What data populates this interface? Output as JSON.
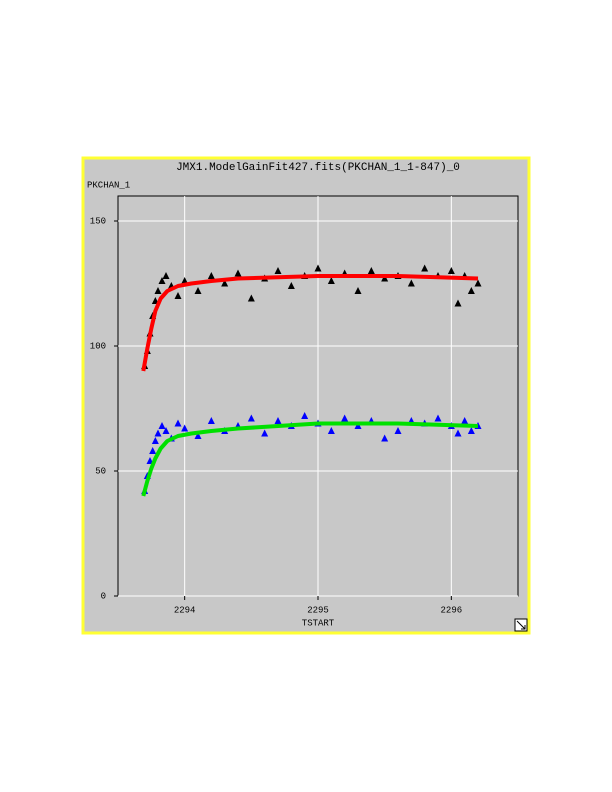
{
  "chart_data": {
    "type": "scatter",
    "title": "JMX1.ModelGainFit427.fits(PKCHAN_1_1-847)_0",
    "ylabel": "PKCHAN_1",
    "xlabel": "TSTART",
    "xlim": [
      2293.5,
      2296.5
    ],
    "xticks": [
      2294,
      2295,
      2296
    ],
    "ylim": [
      0,
      160
    ],
    "yticks": [
      0,
      50,
      100,
      150
    ],
    "grid": true,
    "series": [
      {
        "color": "#000000",
        "marker": "triangle",
        "x": [
          2293.7,
          2293.72,
          2293.74,
          2293.76,
          2293.78,
          2293.8,
          2293.83,
          2293.86,
          2293.9,
          2293.95,
          2294.0,
          2294.1,
          2294.2,
          2294.3,
          2294.4,
          2294.5,
          2294.6,
          2294.7,
          2294.8,
          2294.9,
          2295.0,
          2295.1,
          2295.2,
          2295.3,
          2295.4,
          2295.5,
          2295.6,
          2295.7,
          2295.8,
          2295.9,
          2296.0,
          2296.05,
          2296.1,
          2296.15,
          2296.2
        ],
        "values": [
          92,
          98,
          105,
          112,
          118,
          122,
          126,
          128,
          124,
          120,
          126,
          122,
          128,
          125,
          129,
          119,
          127,
          130,
          124,
          128,
          131,
          126,
          129,
          122,
          130,
          127,
          128,
          125,
          131,
          128,
          130,
          117,
          128,
          122,
          125
        ]
      },
      {
        "color": "#0000ff",
        "marker": "triangle",
        "x": [
          2293.7,
          2293.72,
          2293.74,
          2293.76,
          2293.78,
          2293.8,
          2293.83,
          2293.86,
          2293.9,
          2293.95,
          2294.0,
          2294.1,
          2294.2,
          2294.3,
          2294.4,
          2294.5,
          2294.6,
          2294.7,
          2294.8,
          2294.9,
          2295.0,
          2295.1,
          2295.2,
          2295.3,
          2295.4,
          2295.5,
          2295.6,
          2295.7,
          2295.8,
          2295.9,
          2296.0,
          2296.05,
          2296.1,
          2296.15,
          2296.2
        ],
        "values": [
          42,
          48,
          54,
          58,
          62,
          65,
          68,
          66,
          63,
          69,
          67,
          64,
          70,
          66,
          68,
          71,
          65,
          70,
          68,
          72,
          69,
          66,
          71,
          68,
          70,
          63,
          66,
          70,
          69,
          71,
          68,
          65,
          70,
          66,
          68
        ]
      },
      {
        "color": "#ff0000",
        "marker": "line",
        "x": [
          2293.69,
          2293.72,
          2293.75,
          2293.78,
          2293.82,
          2293.87,
          2293.95,
          2294.05,
          2294.2,
          2294.4,
          2294.7,
          2295.0,
          2295.3,
          2295.6,
          2295.9,
          2296.2
        ],
        "values": [
          90,
          99,
          107,
          114,
          119,
          122,
          124,
          125,
          126,
          127,
          127.5,
          128,
          128,
          128,
          127.5,
          127
        ]
      },
      {
        "color": "#00e000",
        "marker": "line",
        "x": [
          2293.69,
          2293.72,
          2293.75,
          2293.78,
          2293.82,
          2293.87,
          2293.95,
          2294.05,
          2294.2,
          2294.4,
          2294.7,
          2295.0,
          2295.3,
          2295.6,
          2295.9,
          2296.2
        ],
        "values": [
          40,
          46,
          51,
          55,
          59,
          62,
          64,
          65,
          66,
          67,
          68,
          69,
          69,
          69,
          68.5,
          68
        ]
      }
    ]
  }
}
